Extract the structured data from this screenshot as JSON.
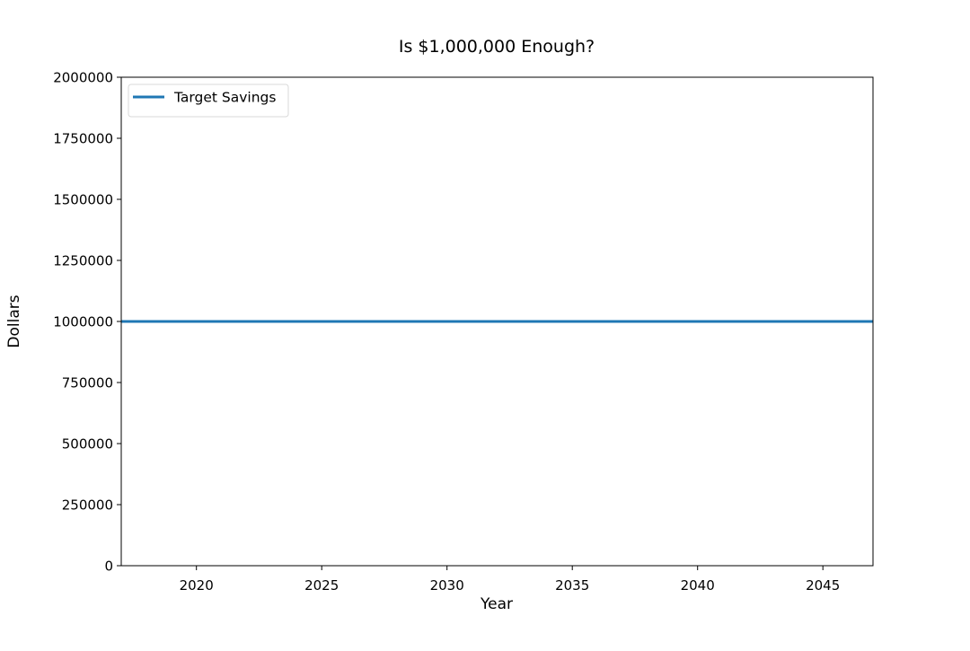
{
  "chart_data": {
    "type": "line",
    "title": "Is $1,000,000 Enough?",
    "xlabel": "Year",
    "ylabel": "Dollars",
    "xlim": [
      2017,
      2047
    ],
    "ylim": [
      0,
      2000000
    ],
    "x_ticks": [
      2020,
      2025,
      2030,
      2035,
      2040,
      2045
    ],
    "x_tick_labels": [
      "2020",
      "2025",
      "2030",
      "2035",
      "2040",
      "2045"
    ],
    "y_ticks": [
      0,
      250000,
      500000,
      750000,
      1000000,
      1250000,
      1500000,
      1750000,
      2000000
    ],
    "y_tick_labels": [
      "0",
      "250000",
      "500000",
      "750000",
      "1000000",
      "1250000",
      "1500000",
      "1750000",
      "2000000"
    ],
    "series": [
      {
        "name": "Target Savings",
        "color": "#1f77b4",
        "x": [
          2017,
          2047
        ],
        "y": [
          1000000,
          1000000
        ]
      }
    ],
    "legend": {
      "placement": "top-left"
    },
    "grid": false
  }
}
